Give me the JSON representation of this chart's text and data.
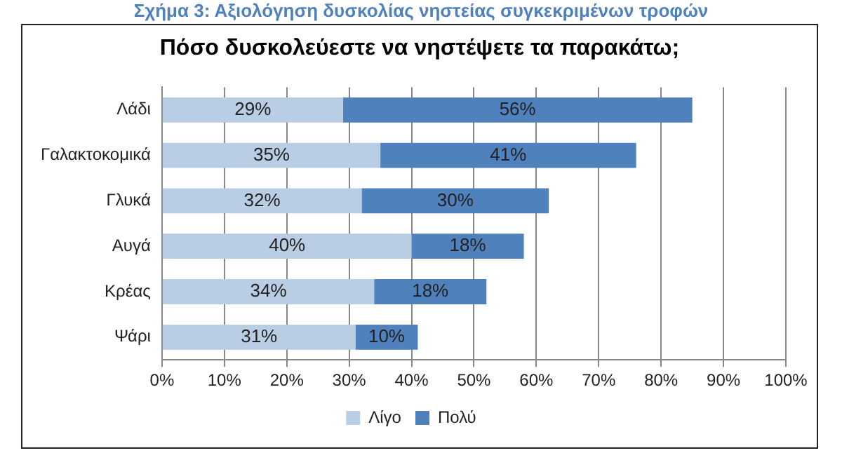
{
  "chart_data": {
    "type": "bar",
    "orientation": "horizontal",
    "stacked": true,
    "title": "Σχήμα 3: Αξιολόγηση δυσκολίας νηστείας συγκεκριμένων τροφών",
    "subtitle": "Πόσο δυσκολεύεστε να νηστέψετε τα παρακάτω;",
    "categories": [
      "Λάδι",
      "Γαλακτοκομικά",
      "Γλυκά",
      "Αυγά",
      "Κρέας",
      "Ψάρι"
    ],
    "series": [
      {
        "name": "Λίγο",
        "color": "#b9cde5",
        "values": [
          29,
          35,
          32,
          40,
          34,
          31
        ],
        "value_labels": [
          "29%",
          "35%",
          "32%",
          "40%",
          "34%",
          "31%"
        ]
      },
      {
        "name": "Πολύ",
        "color": "#4f81bd",
        "values": [
          56,
          41,
          30,
          18,
          18,
          10
        ],
        "value_labels": [
          "56%",
          "41%",
          "30%",
          "18%",
          "18%",
          "10%"
        ]
      }
    ],
    "xlim": [
      0,
      100
    ],
    "xticks": [
      {
        "value": 0,
        "label": "0%"
      },
      {
        "value": 10,
        "label": "10%"
      },
      {
        "value": 20,
        "label": "20%"
      },
      {
        "value": 30,
        "label": "30%"
      },
      {
        "value": 40,
        "label": "40%"
      },
      {
        "value": 50,
        "label": "50%"
      },
      {
        "value": 60,
        "label": "60%"
      },
      {
        "value": 70,
        "label": "70%"
      },
      {
        "value": 80,
        "label": "80%"
      },
      {
        "value": 90,
        "label": "90%"
      },
      {
        "value": 100,
        "label": "100%"
      }
    ],
    "grid": "x",
    "legend": "bottom"
  }
}
